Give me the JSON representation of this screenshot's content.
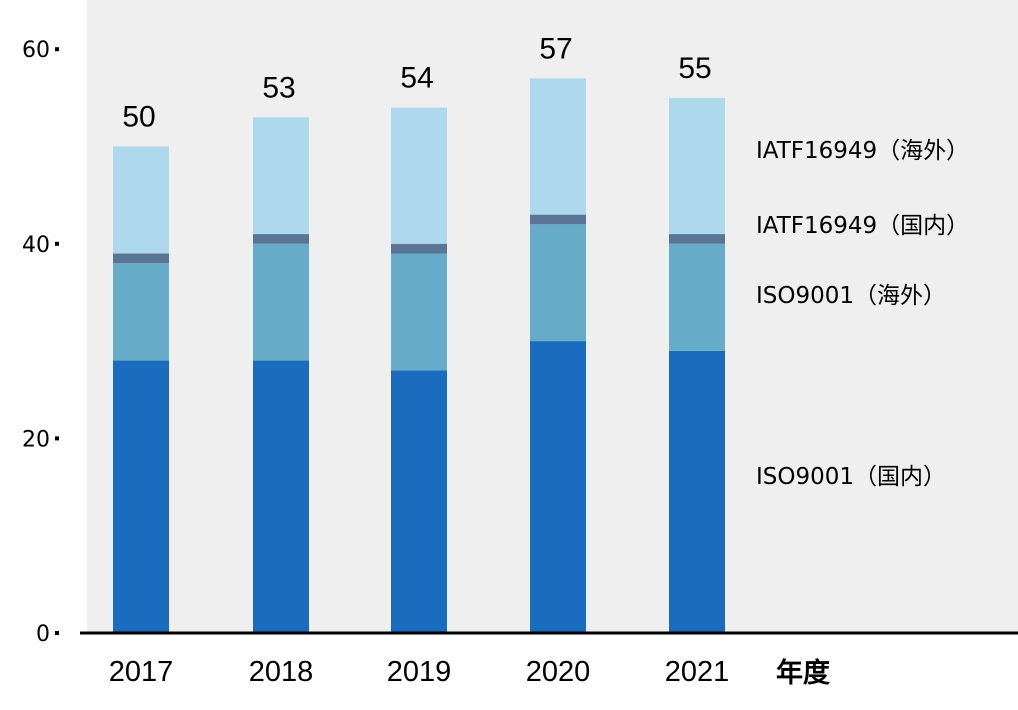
{
  "chart_data": {
    "type": "bar",
    "stacked": true,
    "categories": [
      "2017",
      "2018",
      "2019",
      "2020",
      "2021"
    ],
    "series": [
      {
        "name": "ISO9001（国内）",
        "values": [
          28,
          28,
          27,
          30,
          29
        ],
        "color": "#1a6dbe"
      },
      {
        "name": "ISO9001（海外）",
        "values": [
          10,
          12,
          12,
          12,
          11
        ],
        "color": "#66acc8"
      },
      {
        "name": "IATF16949（国内）",
        "values": [
          1,
          1,
          1,
          1,
          1
        ],
        "color": "#5a7596"
      },
      {
        "name": "IATF16949（海外）",
        "values": [
          11,
          12,
          14,
          14,
          14
        ],
        "color": "#aed8ec"
      }
    ],
    "totals": [
      "50",
      "53",
      "54",
      "57",
      "55"
    ],
    "yticks": [
      "0",
      "20",
      "40",
      "60"
    ],
    "ylim": [
      0,
      60
    ],
    "xlabel": "年度",
    "ylabel": "",
    "title": "",
    "legend_position": "right",
    "grid": false,
    "background_color": "#efefef",
    "axis_color": "#000000"
  }
}
